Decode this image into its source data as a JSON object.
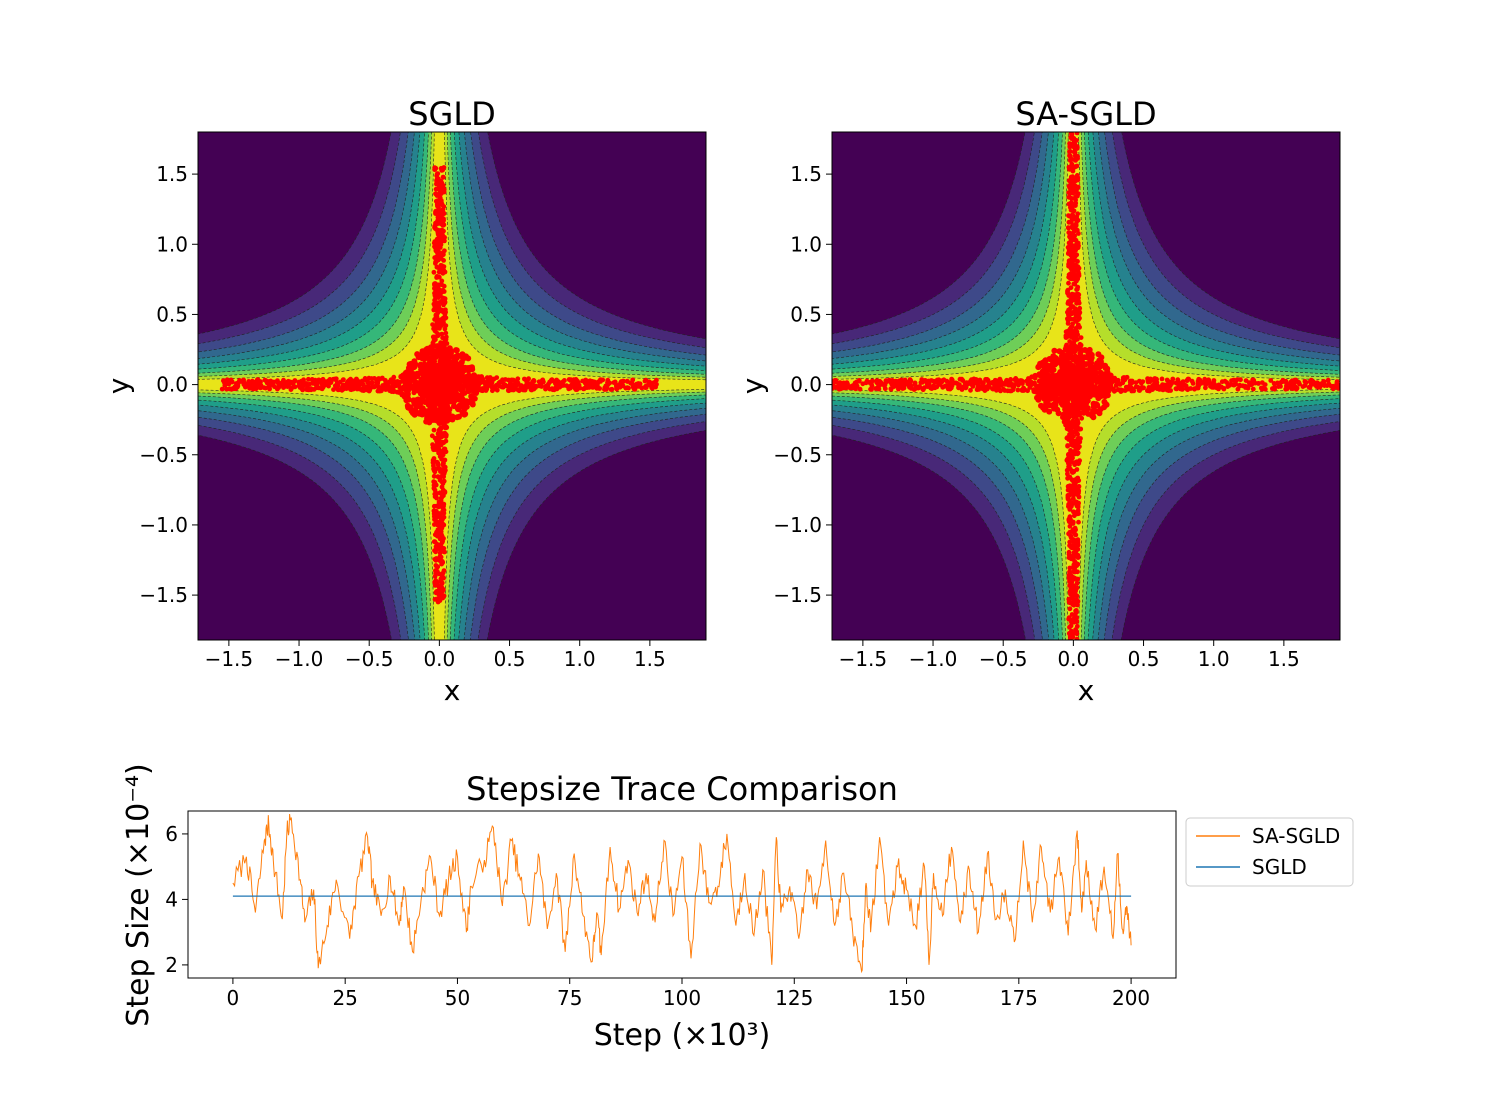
{
  "chart_data": [
    {
      "type": "contour-scatter",
      "title": "SGLD",
      "xlabel": "x",
      "ylabel": "y",
      "xlim": [
        -1.72,
        1.9
      ],
      "ylim": [
        -1.82,
        1.8
      ],
      "xticks": [
        -1.5,
        -1.0,
        -0.5,
        0.0,
        0.5,
        1.0,
        1.5
      ],
      "yticks": [
        -1.5,
        -1.0,
        -0.5,
        0.0,
        0.5,
        1.0,
        1.5
      ],
      "xtick_labels": [
        "−1.5",
        "−1.0",
        "−0.5",
        "0.0",
        "0.5",
        "1.0",
        "1.5"
      ],
      "ytick_labels": [
        "−1.5",
        "−1.0",
        "−0.5",
        "0.0",
        "0.5",
        "1.0",
        "1.5"
      ],
      "background": "density contours, viridis colormap, dashed contour lines",
      "samples": {
        "color": "#ff0000",
        "shape": "cross-shaped cloud centered at origin",
        "x_extent": [
          -1.55,
          1.55
        ],
        "y_extent": [
          -1.55,
          1.55
        ]
      }
    },
    {
      "type": "contour-scatter",
      "title": "SA-SGLD",
      "xlabel": "x",
      "ylabel": "y",
      "xlim": [
        -1.72,
        1.9
      ],
      "ylim": [
        -1.82,
        1.8
      ],
      "xticks": [
        -1.5,
        -1.0,
        -0.5,
        0.0,
        0.5,
        1.0,
        1.5
      ],
      "yticks": [
        -1.5,
        -1.0,
        -0.5,
        0.0,
        0.5,
        1.0,
        1.5
      ],
      "xtick_labels": [
        "−1.5",
        "−1.0",
        "−0.5",
        "0.0",
        "0.5",
        "1.0",
        "1.5"
      ],
      "ytick_labels": [
        "−1.5",
        "−1.0",
        "−0.5",
        "0.0",
        "0.5",
        "1.0",
        "1.5"
      ],
      "background": "density contours, viridis colormap, dashed contour lines",
      "samples": {
        "color": "#ff0000",
        "shape": "cross-shaped cloud centered at origin",
        "x_extent": [
          -1.72,
          1.9
        ],
        "y_extent": [
          -1.82,
          1.8
        ]
      }
    },
    {
      "type": "line",
      "title": "Stepsize Trace Comparison",
      "xlabel": "Step (×10³)",
      "ylabel": "Step Size (×10⁻⁴)",
      "xlim": [
        -10,
        210
      ],
      "ylim": [
        1.6,
        6.7
      ],
      "xticks": [
        0,
        25,
        50,
        75,
        100,
        125,
        150,
        175,
        200
      ],
      "yticks": [
        2,
        4,
        6
      ],
      "legend": "outside-right",
      "series": [
        {
          "name": "SA-SGLD",
          "color": "#ff7f0e",
          "x": [
            0,
            3,
            5,
            7,
            8,
            9,
            11,
            12,
            13,
            15,
            16,
            18,
            19,
            21,
            23,
            26,
            28,
            30,
            31,
            33,
            35,
            37,
            38,
            40,
            42,
            44,
            46,
            48,
            50,
            52,
            53,
            56,
            58,
            60,
            62,
            64,
            66,
            68,
            70,
            72,
            74,
            76,
            78,
            80,
            81,
            82,
            84,
            86,
            88,
            90,
            92,
            94,
            96,
            98,
            100,
            102,
            104,
            106,
            108,
            110,
            112,
            114,
            116,
            118,
            120,
            121,
            122,
            124,
            126,
            128,
            130,
            132,
            134,
            136,
            138,
            140,
            141,
            142,
            144,
            146,
            148,
            150,
            152,
            154,
            155,
            156,
            158,
            160,
            162,
            164,
            166,
            168,
            170,
            172,
            174,
            176,
            178,
            180,
            182,
            184,
            186,
            188,
            189,
            190,
            192,
            194,
            196,
            197,
            198,
            199,
            200
          ],
          "values": [
            4.5,
            5.3,
            3.6,
            5.8,
            6.3,
            5.2,
            3.4,
            6.0,
            6.5,
            4.6,
            3.3,
            4.3,
            1.9,
            3.2,
            4.6,
            2.8,
            4.7,
            5.9,
            4.5,
            3.5,
            4.7,
            3.2,
            4.4,
            2.4,
            4.1,
            5.3,
            3.5,
            4.6,
            5.3,
            3.0,
            4.4,
            5.2,
            6.2,
            3.8,
            5.8,
            4.6,
            3.2,
            5.4,
            3.1,
            4.8,
            2.4,
            5.4,
            3.5,
            2.1,
            3.6,
            2.3,
            5.6,
            3.7,
            5.2,
            3.6,
            4.8,
            3.3,
            5.8,
            3.5,
            5.3,
            2.2,
            5.7,
            3.9,
            4.4,
            6.0,
            3.2,
            4.8,
            2.9,
            4.9,
            2.0,
            5.9,
            3.6,
            4.4,
            2.8,
            4.9,
            3.7,
            5.8,
            3.2,
            4.8,
            3.0,
            1.8,
            4.5,
            3.0,
            5.9,
            3.2,
            5.0,
            4.3,
            3.2,
            5.0,
            2.0,
            4.8,
            3.5,
            5.6,
            3.3,
            4.9,
            3.0,
            5.4,
            3.4,
            4.3,
            2.7,
            5.8,
            3.3,
            5.6,
            3.6,
            5.3,
            2.9,
            6.1,
            3.6,
            5.2,
            3.1,
            5.0,
            2.8,
            5.4,
            3.1,
            3.8,
            2.6
          ]
        },
        {
          "name": "SGLD",
          "color": "#1f77b4",
          "x": [
            0,
            200
          ],
          "values": [
            4.1,
            4.1
          ]
        }
      ]
    }
  ]
}
